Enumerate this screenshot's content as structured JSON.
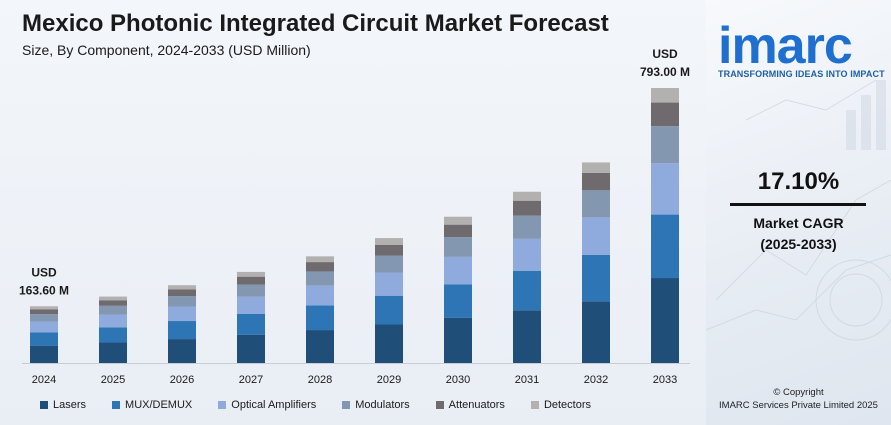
{
  "header": {
    "title": "Mexico Photonic Integrated Circuit Market Forecast",
    "subtitle": "Size, By Component, 2024-2033 (USD Million)"
  },
  "chart_data": {
    "type": "bar",
    "stacked": true,
    "categories": [
      "2024",
      "2025",
      "2026",
      "2027",
      "2028",
      "2029",
      "2030",
      "2031",
      "2032",
      "2033"
    ],
    "totals": [
      163.6,
      191.6,
      224.3,
      262.7,
      307.6,
      360.2,
      421.8,
      493.9,
      578.4,
      793.0
    ],
    "series": [
      {
        "name": "Lasers",
        "color": "#1f4e79",
        "values": [
          50,
          59,
          69,
          81,
          95,
          111,
          130,
          152,
          178,
          245
        ]
      },
      {
        "name": "MUX/DEMUX",
        "color": "#2e75b6",
        "values": [
          38,
          44,
          52,
          61,
          71,
          83,
          97,
          114,
          134,
          183
        ]
      },
      {
        "name": "Optical Amplifiers",
        "color": "#8faadc",
        "values": [
          31,
          36,
          42,
          49,
          57,
          67,
          79,
          92,
          108,
          148
        ]
      },
      {
        "name": "Modulators",
        "color": "#8497b0",
        "values": [
          22,
          26,
          30,
          35,
          41,
          49,
          57,
          67,
          78,
          107
        ]
      },
      {
        "name": "Attenuators",
        "color": "#6f6a6e",
        "values": [
          14,
          16,
          19,
          23,
          27,
          31,
          36,
          43,
          50,
          68
        ]
      },
      {
        "name": "Detectors",
        "color": "#b3b0b0",
        "values": [
          8.6,
          10.6,
          12.3,
          13.7,
          16.6,
          19.2,
          22.8,
          25.9,
          30.4,
          42
        ]
      }
    ],
    "annotations": [
      {
        "category": "2024",
        "line1": "USD",
        "line2": "163.60 M"
      },
      {
        "category": "2033",
        "line1": "USD",
        "line2": "793.00 M"
      }
    ],
    "ylim": [
      0,
      800
    ],
    "grid": false,
    "legend": "bottom"
  },
  "sidebar": {
    "logo_main": "imarc",
    "tagline": "TRANSFORMING IDEAS INTO IMPACT",
    "cagr_value": "17.10%",
    "cagr_label_1": "Market CAGR",
    "cagr_label_2": "(2025-2033)",
    "copyright_1": "© Copyright",
    "copyright_2": "IMARC Services Private Limited 2025"
  }
}
